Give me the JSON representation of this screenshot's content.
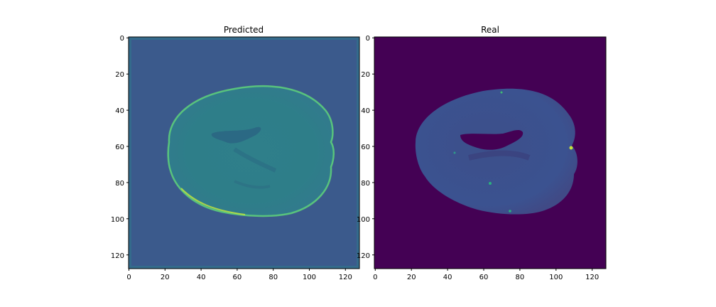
{
  "figure": {
    "panels": [
      {
        "title": "Predicted",
        "x_ticks": [
          "0",
          "20",
          "40",
          "60",
          "80",
          "100",
          "120"
        ],
        "y_ticks": [
          "0",
          "20",
          "40",
          "60",
          "80",
          "100",
          "120"
        ],
        "colormap": "viridis",
        "background_color": "#3b5a8c"
      },
      {
        "title": "Real",
        "x_ticks": [
          "0",
          "20",
          "40",
          "60",
          "80",
          "100",
          "120"
        ],
        "y_ticks": [
          "0",
          "20",
          "40",
          "60",
          "80",
          "100",
          "120"
        ],
        "colormap": "viridis",
        "background_color": "#440154"
      }
    ]
  }
}
